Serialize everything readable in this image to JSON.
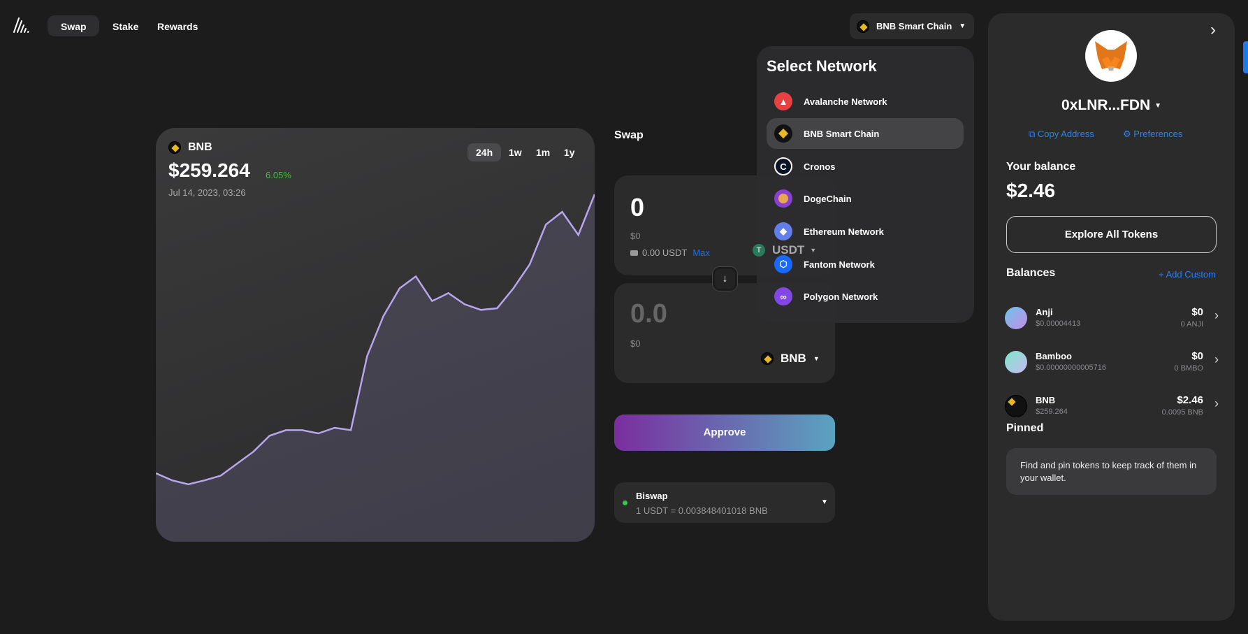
{
  "nav": {
    "logo": "anji-logo",
    "items": [
      {
        "label": "Swap",
        "active": true
      },
      {
        "label": "Stake"
      },
      {
        "label": "Rewards"
      }
    ]
  },
  "network_button": {
    "label": "BNB Smart Chain"
  },
  "network_dropdown": {
    "title": "Select Network",
    "items": [
      {
        "label": "Avalanche Network",
        "color": "#e84142",
        "icon": "avalanche-icon"
      },
      {
        "label": "BNB Smart Chain",
        "color": "#111111",
        "icon": "bnb-icon",
        "selected": true
      },
      {
        "label": "Cronos",
        "color": "#0b1426",
        "icon": "cronos-icon"
      },
      {
        "label": "DogeChain",
        "color": "#8a3fd1",
        "icon": "doge-icon"
      },
      {
        "label": "Ethereum Network",
        "color": "#627eea",
        "icon": "ethereum-icon"
      },
      {
        "label": "Fantom Network",
        "color": "#1969ff",
        "icon": "fantom-icon"
      },
      {
        "label": "Polygon Network",
        "color": "#8247e5",
        "icon": "polygon-icon"
      }
    ]
  },
  "chart": {
    "token": "BNB",
    "price": "$259.264",
    "change": "6.05%",
    "change_color": "#3cc13b",
    "date": "Jul 14, 2023, 03:26",
    "timeframes": [
      "24h",
      "1w",
      "1m",
      "1y"
    ],
    "active_timeframe": "24h"
  },
  "chart_data": {
    "type": "area",
    "relative_values": [
      43,
      34,
      29,
      34,
      40,
      55,
      70,
      90,
      97,
      97,
      93,
      100,
      97,
      190,
      240,
      275,
      290,
      259,
      269,
      255,
      248,
      250,
      275,
      305,
      355,
      371,
      342,
      393
    ],
    "line_color": "#b7a6ee"
  },
  "swap": {
    "title": "Swap",
    "from": {
      "amount": "0",
      "usd": "$0",
      "balance": "0.00 USDT",
      "max": "Max",
      "token": "USDT"
    },
    "to": {
      "amount": "0.0",
      "usd": "$0",
      "token": "BNB"
    },
    "approve": "Approve",
    "route": {
      "dex": "Biswap",
      "rate": "1 USDT = 0.003848401018 BNB"
    }
  },
  "wallet": {
    "address": "0xLNR...FDN",
    "copy": "Copy Address",
    "prefs": "Preferences",
    "balance_label": "Your balance",
    "balance": "$2.46",
    "explore": "Explore All Tokens",
    "balances_title": "Balances",
    "add_custom": "+ Add Custom",
    "tokens": [
      {
        "name": "Anji",
        "price": "$0.00004413",
        "value": "$0",
        "amount": "0 ANJI"
      },
      {
        "name": "Bamboo",
        "price": "$0.00000000005716",
        "value": "$0",
        "amount": "0 BMBO"
      },
      {
        "name": "BNB",
        "price": "$259.264",
        "value": "$2.46",
        "amount": "0.0095 BNB"
      }
    ],
    "pinned_title": "Pinned",
    "pinned_empty": "Find and pin tokens to keep track of them in your wallet."
  }
}
